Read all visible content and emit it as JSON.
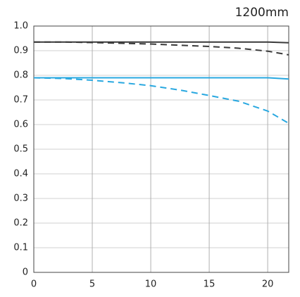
{
  "chart_data": {
    "type": "line",
    "title": "1200mm",
    "x": [
      0,
      2.5,
      5,
      7.5,
      10,
      12.5,
      15,
      17.5,
      20,
      21.8
    ],
    "series": [
      {
        "color": "#3a3a3a",
        "dashed": false,
        "values": [
          0.935,
          0.935,
          0.935,
          0.935,
          0.935,
          0.935,
          0.935,
          0.935,
          0.935,
          0.932
        ]
      },
      {
        "color": "#3a3a3a",
        "dashed": true,
        "values": [
          0.935,
          0.935,
          0.933,
          0.93,
          0.927,
          0.922,
          0.917,
          0.91,
          0.898,
          0.883
        ]
      },
      {
        "color": "#29a8e0",
        "dashed": false,
        "values": [
          0.79,
          0.79,
          0.79,
          0.79,
          0.79,
          0.79,
          0.79,
          0.79,
          0.79,
          0.785
        ]
      },
      {
        "color": "#29a8e0",
        "dashed": true,
        "values": [
          0.79,
          0.787,
          0.78,
          0.77,
          0.758,
          0.74,
          0.718,
          0.695,
          0.655,
          0.605
        ]
      }
    ],
    "xlim": [
      0,
      21.8
    ],
    "xticks": [
      0,
      5,
      10,
      15,
      20
    ],
    "ylim": [
      0,
      1
    ],
    "yticks": [
      0,
      0.1,
      0.2,
      0.3,
      0.4,
      0.5,
      0.6,
      0.7,
      0.8,
      0.9,
      {
        "value": 1,
        "label": "1.0"
      }
    ],
    "grid": true
  }
}
